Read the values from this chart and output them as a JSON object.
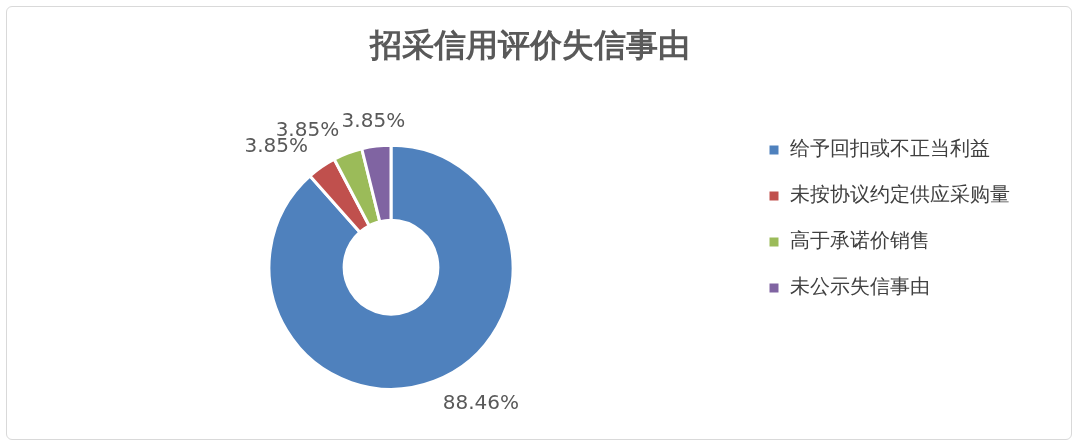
{
  "chart_data": {
    "type": "donut",
    "title": "招采信用评价失信事由",
    "categories": [
      "给予回扣或不正当利益",
      "未按协议约定供应采购量",
      "高于承诺价销售",
      "未公示失信事由"
    ],
    "values": [
      88.46,
      3.85,
      3.85,
      3.85
    ],
    "colors": [
      "#4f81bd",
      "#c0504d",
      "#9bbb59",
      "#8064a2"
    ],
    "value_labels": [
      "88.46%",
      "3.85%",
      "3.85%",
      "3.85%"
    ],
    "legend": "right"
  }
}
